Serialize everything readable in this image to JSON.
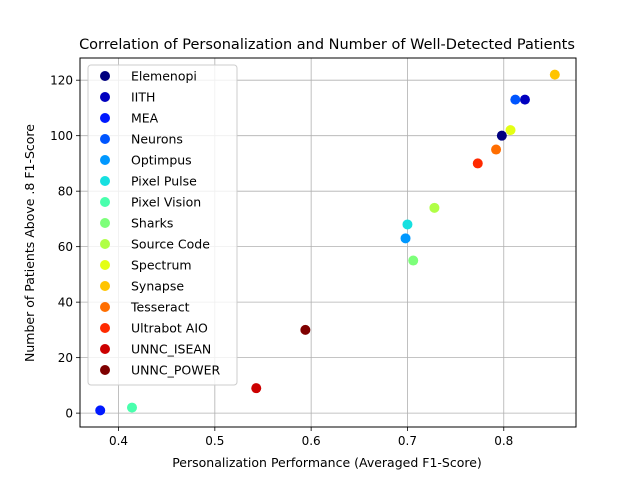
{
  "chart_data": {
    "type": "scatter",
    "title": "Correlation of Personalization and Number of Well-Detected Patients",
    "xlabel": "Personalization Performance (Averaged F1-Score)",
    "ylabel": "Number of Patients Above .8 F1-Score",
    "xlim": [
      0.36,
      0.875
    ],
    "ylim": [
      -5,
      128
    ],
    "xticks": [
      0.4,
      0.5,
      0.6,
      0.7,
      0.8
    ],
    "xtick_labels": [
      "0.4",
      "0.5",
      "0.6",
      "0.7",
      "0.8"
    ],
    "yticks": [
      0,
      20,
      40,
      60,
      80,
      100,
      120
    ],
    "ytick_labels": [
      "0",
      "20",
      "40",
      "60",
      "80",
      "100",
      "120"
    ],
    "grid": true,
    "legend_position": "top-left",
    "series": [
      {
        "name": "Elemenopi",
        "color": "#00007f",
        "points": [
          [
            0.798,
            100
          ]
        ]
      },
      {
        "name": "IITH",
        "color": "#0000bf",
        "points": [
          [
            0.822,
            113
          ]
        ]
      },
      {
        "name": "MEA",
        "color": "#0019ff",
        "points": [
          [
            0.381,
            1
          ]
        ]
      },
      {
        "name": "Neurons",
        "color": "#0055ff",
        "points": [
          [
            0.812,
            113
          ]
        ]
      },
      {
        "name": "Optimpus",
        "color": "#0098ff",
        "points": [
          [
            0.698,
            63
          ]
        ]
      },
      {
        "name": "Pixel Pulse",
        "color": "#16e0e0",
        "points": [
          [
            0.7,
            68
          ]
        ]
      },
      {
        "name": "Pixel Vision",
        "color": "#49ffad",
        "points": [
          [
            0.414,
            2
          ]
        ]
      },
      {
        "name": "Sharks",
        "color": "#7dff7a",
        "points": [
          [
            0.706,
            55
          ]
        ]
      },
      {
        "name": "Source Code",
        "color": "#b0ff46",
        "points": [
          [
            0.728,
            74
          ]
        ]
      },
      {
        "name": "Spectrum",
        "color": "#e4ff13",
        "points": [
          [
            0.807,
            102
          ]
        ]
      },
      {
        "name": "Synapse",
        "color": "#ffc400",
        "points": [
          [
            0.853,
            122
          ]
        ]
      },
      {
        "name": "Tesseract",
        "color": "#ff6e00",
        "points": [
          [
            0.792,
            95
          ]
        ]
      },
      {
        "name": "Ultrabot AIO",
        "color": "#ff2a00",
        "points": [
          [
            0.773,
            90
          ]
        ]
      },
      {
        "name": "UNNC_ISEAN",
        "color": "#cc0000",
        "points": [
          [
            0.543,
            9
          ]
        ]
      },
      {
        "name": "UNNC_POWER",
        "color": "#7f0000",
        "points": [
          [
            0.594,
            30
          ]
        ]
      }
    ]
  }
}
